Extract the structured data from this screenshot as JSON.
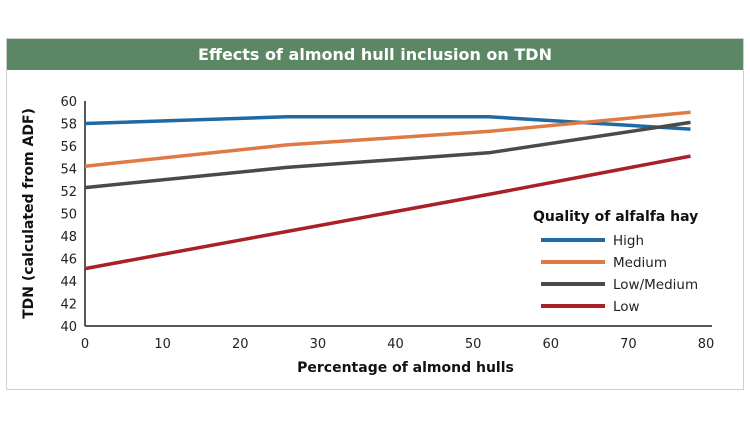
{
  "chart_data": {
    "type": "line",
    "title": "Effects of almond hull inclusion on TDN",
    "xlabel": "Percentage of almond hulls",
    "ylabel": "TDN (calculated from ADF)",
    "xlim": [
      0,
      80
    ],
    "ylim": [
      40,
      60
    ],
    "x_ticks": [
      0,
      10,
      20,
      30,
      40,
      50,
      60,
      70,
      80
    ],
    "y_ticks": [
      40,
      42,
      44,
      46,
      48,
      50,
      52,
      54,
      56,
      58,
      60
    ],
    "grid": false,
    "legend": {
      "title": "Quality of alfalfa hay",
      "position": "right"
    },
    "series": [
      {
        "name": "High",
        "color": "#1f6aa5",
        "x": [
          0,
          26,
          52,
          78
        ],
        "y": [
          58.0,
          58.6,
          58.6,
          57.5
        ]
      },
      {
        "name": "Medium",
        "color": "#e07a45",
        "x": [
          0,
          26,
          52,
          78
        ],
        "y": [
          54.2,
          56.1,
          57.3,
          59.0
        ]
      },
      {
        "name": "Low/Medium",
        "color": "#4a4a46",
        "x": [
          0,
          26,
          52,
          78
        ],
        "y": [
          52.3,
          54.1,
          55.4,
          58.1
        ]
      },
      {
        "name": "Low",
        "color": "#a92027",
        "x": [
          0,
          26,
          52,
          78
        ],
        "y": [
          45.1,
          48.4,
          51.7,
          55.1
        ]
      }
    ]
  }
}
